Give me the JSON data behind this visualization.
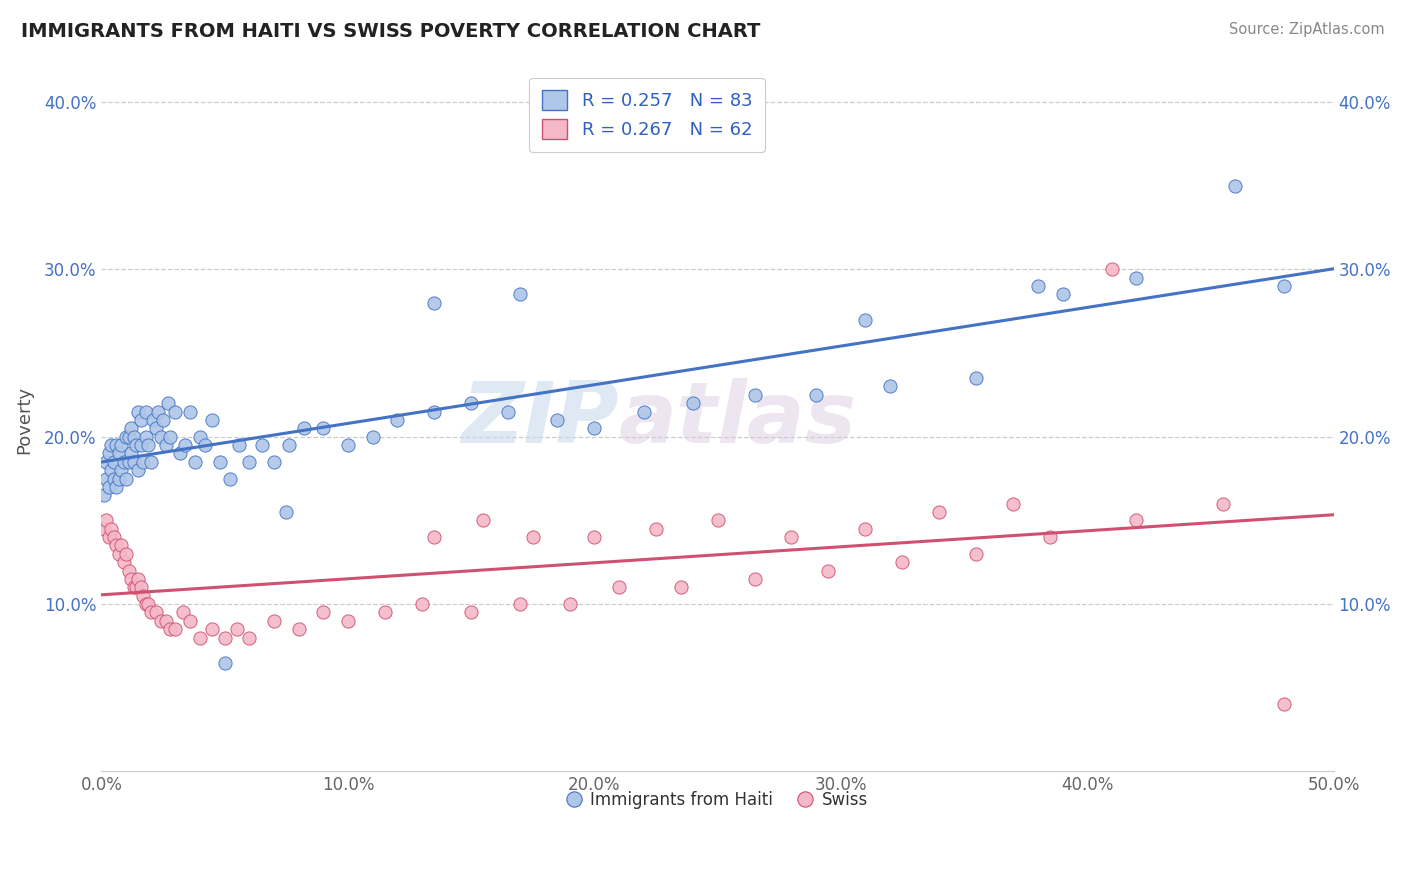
{
  "title": "IMMIGRANTS FROM HAITI VS SWISS POVERTY CORRELATION CHART",
  "source": "Source: ZipAtlas.com",
  "ylabel": "Poverty",
  "xlim": [
    0.0,
    0.5
  ],
  "ylim": [
    0.0,
    0.42
  ],
  "xticks": [
    0.0,
    0.1,
    0.2,
    0.3,
    0.4,
    0.5
  ],
  "yticks": [
    0.1,
    0.2,
    0.3,
    0.4
  ],
  "xtick_labels": [
    "0.0%",
    "10.0%",
    "20.0%",
    "30.0%",
    "40.0%",
    "50.0%"
  ],
  "ytick_labels": [
    "10.0%",
    "20.0%",
    "30.0%",
    "40.0%"
  ],
  "legend1_label": "Immigrants from Haiti",
  "legend2_label": "Swiss",
  "haiti_color": "#aec6e8",
  "swiss_color": "#f4b8c8",
  "haiti_line_color": "#4472c4",
  "swiss_line_color": "#d05070",
  "haiti_R": 0.257,
  "haiti_N": 83,
  "swiss_R": 0.267,
  "swiss_N": 62,
  "watermark_zip": "ZIP",
  "watermark_atlas": "atlas",
  "background_color": "#ffffff",
  "grid_color": "#cccccc",
  "haiti_scatter_x": [
    0.001,
    0.002,
    0.002,
    0.003,
    0.003,
    0.004,
    0.004,
    0.005,
    0.005,
    0.006,
    0.006,
    0.007,
    0.007,
    0.008,
    0.008,
    0.009,
    0.01,
    0.01,
    0.011,
    0.011,
    0.012,
    0.012,
    0.013,
    0.013,
    0.014,
    0.015,
    0.015,
    0.016,
    0.016,
    0.017,
    0.018,
    0.018,
    0.019,
    0.02,
    0.021,
    0.022,
    0.023,
    0.024,
    0.025,
    0.026,
    0.027,
    0.028,
    0.03,
    0.032,
    0.034,
    0.036,
    0.038,
    0.04,
    0.042,
    0.045,
    0.048,
    0.052,
    0.056,
    0.06,
    0.065,
    0.07,
    0.076,
    0.082,
    0.09,
    0.1,
    0.11,
    0.12,
    0.135,
    0.15,
    0.165,
    0.185,
    0.2,
    0.22,
    0.24,
    0.265,
    0.29,
    0.32,
    0.355,
    0.39,
    0.42,
    0.46,
    0.48,
    0.17,
    0.31,
    0.38,
    0.135,
    0.05,
    0.075
  ],
  "haiti_scatter_y": [
    0.165,
    0.175,
    0.185,
    0.17,
    0.19,
    0.18,
    0.195,
    0.175,
    0.185,
    0.17,
    0.195,
    0.175,
    0.19,
    0.18,
    0.195,
    0.185,
    0.175,
    0.2,
    0.185,
    0.2,
    0.19,
    0.205,
    0.185,
    0.2,
    0.195,
    0.18,
    0.215,
    0.195,
    0.21,
    0.185,
    0.2,
    0.215,
    0.195,
    0.185,
    0.21,
    0.205,
    0.215,
    0.2,
    0.21,
    0.195,
    0.22,
    0.2,
    0.215,
    0.19,
    0.195,
    0.215,
    0.185,
    0.2,
    0.195,
    0.21,
    0.185,
    0.175,
    0.195,
    0.185,
    0.195,
    0.185,
    0.195,
    0.205,
    0.205,
    0.195,
    0.2,
    0.21,
    0.215,
    0.22,
    0.215,
    0.21,
    0.205,
    0.215,
    0.22,
    0.225,
    0.225,
    0.23,
    0.235,
    0.285,
    0.295,
    0.35,
    0.29,
    0.285,
    0.27,
    0.29,
    0.28,
    0.065,
    0.155
  ],
  "swiss_scatter_x": [
    0.001,
    0.002,
    0.003,
    0.004,
    0.005,
    0.006,
    0.007,
    0.008,
    0.009,
    0.01,
    0.011,
    0.012,
    0.013,
    0.014,
    0.015,
    0.016,
    0.017,
    0.018,
    0.019,
    0.02,
    0.022,
    0.024,
    0.026,
    0.028,
    0.03,
    0.033,
    0.036,
    0.04,
    0.045,
    0.05,
    0.055,
    0.06,
    0.07,
    0.08,
    0.09,
    0.1,
    0.115,
    0.13,
    0.15,
    0.17,
    0.19,
    0.21,
    0.235,
    0.265,
    0.295,
    0.325,
    0.355,
    0.385,
    0.42,
    0.455,
    0.31,
    0.28,
    0.25,
    0.225,
    0.2,
    0.175,
    0.155,
    0.135,
    0.34,
    0.37,
    0.41,
    0.48
  ],
  "swiss_scatter_y": [
    0.145,
    0.15,
    0.14,
    0.145,
    0.14,
    0.135,
    0.13,
    0.135,
    0.125,
    0.13,
    0.12,
    0.115,
    0.11,
    0.11,
    0.115,
    0.11,
    0.105,
    0.1,
    0.1,
    0.095,
    0.095,
    0.09,
    0.09,
    0.085,
    0.085,
    0.095,
    0.09,
    0.08,
    0.085,
    0.08,
    0.085,
    0.08,
    0.09,
    0.085,
    0.095,
    0.09,
    0.095,
    0.1,
    0.095,
    0.1,
    0.1,
    0.11,
    0.11,
    0.115,
    0.12,
    0.125,
    0.13,
    0.14,
    0.15,
    0.16,
    0.145,
    0.14,
    0.15,
    0.145,
    0.14,
    0.14,
    0.15,
    0.14,
    0.155,
    0.16,
    0.3,
    0.04
  ]
}
